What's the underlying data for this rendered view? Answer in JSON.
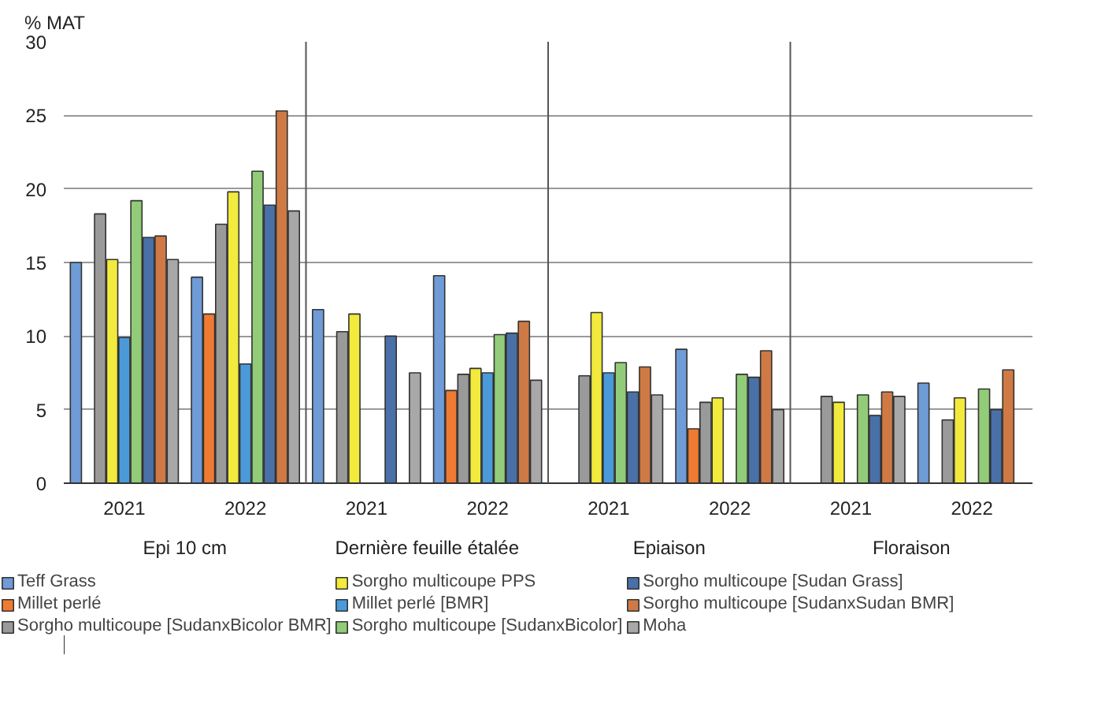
{
  "chart_data": {
    "type": "bar",
    "ylabel": "% MAT",
    "categories": [
      "2021",
      "2022",
      "2021",
      "2022",
      "2021",
      "2022",
      "2021",
      "2022"
    ],
    "annotations": [
      "Epi 10 cm",
      "Dernière feuille étalée",
      "Epiaison",
      "Floraison"
    ],
    "series": [
      {
        "name": "Teff Grass",
        "color": "#6f9bd6",
        "values": [
          15.0,
          14.0,
          11.8,
          14.1,
          null,
          9.1,
          null,
          6.8
        ]
      },
      {
        "name": "Millet perlé",
        "color": "#ef7b32",
        "values": [
          null,
          11.5,
          null,
          6.3,
          null,
          3.7,
          null,
          null
        ]
      },
      {
        "name": "Sorgho multicoupe [SudanxBicolor BMR]",
        "color": "#9a9a9a",
        "values": [
          18.3,
          17.6,
          10.3,
          7.4,
          7.3,
          5.5,
          5.9,
          4.3
        ]
      },
      {
        "name": "Sorgho multicoupe PPS",
        "color": "#f2ea3c",
        "values": [
          15.2,
          19.8,
          11.5,
          7.8,
          11.6,
          5.8,
          5.5,
          5.8
        ]
      },
      {
        "name": "Millet perlé [BMR]",
        "color": "#4a9ad9",
        "values": [
          9.9,
          8.1,
          null,
          7.5,
          7.5,
          null,
          null,
          null
        ]
      },
      {
        "name": "Sorgho multicoupe [SudanxBicolor]",
        "color": "#92cc78",
        "values": [
          19.2,
          21.2,
          null,
          10.1,
          8.2,
          7.4,
          6.0,
          6.4
        ]
      },
      {
        "name": "Sorgho multicoupe [Sudan Grass]",
        "color": "#4a70a8",
        "values": [
          16.7,
          18.9,
          10.0,
          10.2,
          6.2,
          7.2,
          4.6,
          5.0
        ]
      },
      {
        "name": "Sorgho multicoupe [SudanxSudan BMR]",
        "color": "#cf7a45",
        "values": [
          16.8,
          25.3,
          null,
          11.0,
          7.9,
          9.0,
          6.2,
          7.7
        ]
      },
      {
        "name": "Moha",
        "color": "#a8a8a8",
        "values": [
          15.2,
          18.5,
          7.5,
          7.0,
          6.0,
          5.0,
          5.9,
          null
        ]
      }
    ],
    "ylim": [
      0,
      30
    ],
    "yticks": [
      0,
      5,
      10,
      15,
      20,
      25,
      30
    ],
    "grid": "y",
    "legend": "bottom"
  }
}
